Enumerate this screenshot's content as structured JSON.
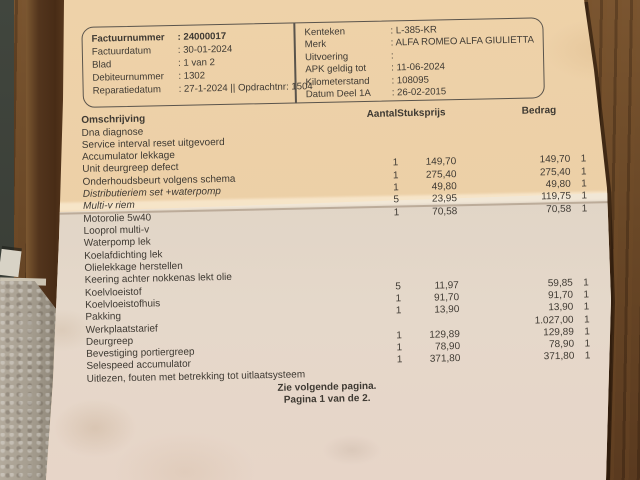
{
  "invoice": {
    "meta_left": [
      {
        "label": "Factuurnummer",
        "value": "24000017",
        "bold": true
      },
      {
        "label": "Factuurdatum",
        "value": "30-01-2024"
      },
      {
        "label": "Blad",
        "value": "1 van 2"
      },
      {
        "label": "Debiteurnummer",
        "value": "1302"
      },
      {
        "label": "Reparatiedatum",
        "value": "27-1-2024 || Opdrachtnr: 1504"
      }
    ],
    "meta_right": [
      {
        "label": "Kenteken",
        "value": "L-385-KR"
      },
      {
        "label": "Merk",
        "value": "ALFA ROMEO ALFA GIULIETTA"
      },
      {
        "label": "Uitvoering",
        "value": ""
      },
      {
        "label": "APK geldig tot",
        "value": "11-06-2024"
      },
      {
        "label": "Kilometerstand",
        "value": "108095"
      },
      {
        "label": "Datum Deel 1A",
        "value": "26-02-2015"
      }
    ],
    "table": {
      "headers": {
        "omschrijving": "Omschrijving",
        "aantal": "Aantal",
        "stuksprijs": "Stuksprijs",
        "bedrag": "Bedrag"
      },
      "rows": [
        {
          "omschrijving": "Dna diagnose"
        },
        {
          "omschrijving": "Service interval reset uitgevoerd"
        },
        {
          "omschrijving": "Accumulator lekkage"
        },
        {
          "omschrijving": "Unit deurgreep defect",
          "aantal": "1",
          "stuksprijs": "149,70",
          "bedrag": "149,70",
          "btw": "1"
        },
        {
          "omschrijving": "Onderhoudsbeurt volgens schema",
          "aantal": "1",
          "stuksprijs": "275,40",
          "bedrag": "275,40",
          "btw": "1"
        },
        {
          "omschrijving": "Distributieriem set +waterpomp",
          "aantal": "1",
          "stuksprijs": "49,80",
          "bedrag": "49,80",
          "btw": "1",
          "italic": true
        },
        {
          "omschrijving": "Multi-v riem",
          "aantal": "5",
          "stuksprijs": "23,95",
          "bedrag": "119,75",
          "btw": "1",
          "italic": true
        },
        {
          "omschrijving": "Motorolie 5w40",
          "aantal": "1",
          "stuksprijs": "70,58",
          "bedrag": "70,58",
          "btw": "1"
        },
        {
          "omschrijving": "Looprol multi-v"
        },
        {
          "omschrijving": "Waterpomp lek"
        },
        {
          "omschrijving": "Koelafdichting lek"
        },
        {
          "omschrijving": "Olielekkage herstellen"
        },
        {
          "omschrijving": "Keering achter nokkenas lekt olie"
        },
        {
          "omschrijving": "Koelvloeistof",
          "aantal": "5",
          "stuksprijs": "11,97",
          "bedrag": "59,85",
          "btw": "1"
        },
        {
          "omschrijving": "Koelvloeistofhuis",
          "aantal": "1",
          "stuksprijs": "91,70",
          "bedrag": "91,70",
          "btw": "1"
        },
        {
          "omschrijving": "Pakking",
          "aantal": "1",
          "stuksprijs": "13,90",
          "bedrag": "13,90",
          "btw": "1"
        },
        {
          "omschrijving": "Werkplaatstarief",
          "bedrag": "1.027,00",
          "btw": "1"
        },
        {
          "omschrijving": "Deurgreep",
          "aantal": "1",
          "stuksprijs": "129,89",
          "bedrag": "129,89",
          "btw": "1"
        },
        {
          "omschrijving": "Bevestiging portiergreep",
          "aantal": "1",
          "stuksprijs": "78,90",
          "bedrag": "78,90",
          "btw": "1"
        },
        {
          "omschrijving": "Selespeed accumulator",
          "aantal": "1",
          "stuksprijs": "371,80",
          "bedrag": "371,80",
          "btw": "1"
        },
        {
          "omschrijving": "Uitlezen, fouten met betrekking tot uitlaatsysteem"
        }
      ]
    },
    "footer": {
      "line1": "Zie volgende pagina.",
      "line2": "Pagina 1 van de 2."
    }
  },
  "colors": {
    "paper_top": "#ecd0a8",
    "paper_bottom": "#e4d8ca",
    "wood": "#6a4827",
    "wall_strip": "#3c403a",
    "stone": "#a59d8f",
    "ink": "#3f3a33"
  }
}
